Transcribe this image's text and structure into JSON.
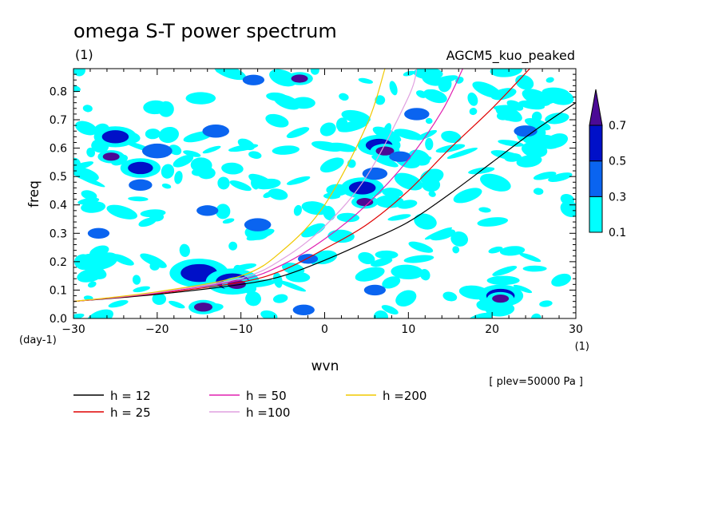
{
  "chart_data": {
    "type": "heatmap",
    "title": "omega S-T power spectrum",
    "subtitle": "(1)",
    "model_label": "AGCM5_kuo_peaked",
    "xlabel": "wvn",
    "x_unit": "(1)",
    "ylabel": "freq",
    "y_unit": "(day-1)",
    "xlim": [
      -30,
      30
    ],
    "ylim": [
      0,
      0.88
    ],
    "x_ticks": [
      "−30",
      "−20",
      "−10",
      "0",
      "10",
      "20",
      "30"
    ],
    "x_tick_values": [
      -30,
      -20,
      -10,
      0,
      10,
      20,
      30
    ],
    "y_ticks": [
      "0.0",
      "0.1",
      "0.2",
      "0.3",
      "0.4",
      "0.5",
      "0.6",
      "0.7",
      "0.8"
    ],
    "y_tick_values": [
      0,
      0.1,
      0.2,
      0.3,
      0.4,
      0.5,
      0.6,
      0.7,
      0.8
    ],
    "footnote": "[ plev=50000 Pa ]",
    "colorbar": {
      "levels": [
        "0.1",
        "0.3",
        "0.5",
        "0.7"
      ],
      "level_values": [
        0.1,
        0.3,
        0.5,
        0.7
      ],
      "colors": [
        "#00ffff",
        "#0a64f0",
        "#0010c8",
        "#4b0a96"
      ]
    },
    "series": [
      {
        "name": "h = 12",
        "label": "h = 12",
        "color": "#000000",
        "x": [
          -30,
          -20,
          -10,
          -5,
          0,
          5,
          10,
          15,
          20,
          25,
          30
        ],
        "y": [
          0.06,
          0.085,
          0.12,
          0.15,
          0.205,
          0.27,
          0.34,
          0.44,
          0.55,
          0.66,
          0.76
        ]
      },
      {
        "name": "h = 25",
        "label": "h = 25",
        "color": "#e00000",
        "x": [
          -30,
          -20,
          -10,
          -5,
          0,
          5,
          10,
          15,
          20,
          24.5
        ],
        "y": [
          0.06,
          0.088,
          0.128,
          0.17,
          0.245,
          0.33,
          0.45,
          0.6,
          0.74,
          0.88
        ]
      },
      {
        "name": "h = 50",
        "label": "h = 50",
        "color": "#e020b0",
        "x": [
          -30,
          -20,
          -10,
          -5,
          0,
          5,
          10,
          14,
          16.5
        ],
        "y": [
          0.06,
          0.09,
          0.136,
          0.19,
          0.28,
          0.4,
          0.56,
          0.73,
          0.88
        ]
      },
      {
        "name": "h =100",
        "label": "h =100",
        "color": "#e0a0e0",
        "x": [
          -30,
          -20,
          -10,
          -5,
          0,
          5,
          10,
          11
        ],
        "y": [
          0.06,
          0.092,
          0.142,
          0.21,
          0.325,
          0.5,
          0.78,
          0.88
        ]
      },
      {
        "name": "h =200",
        "label": "h =200",
        "color": "#f0c800",
        "x": [
          -30,
          -20,
          -10,
          -5,
          0,
          5,
          7.2
        ],
        "y": [
          0.06,
          0.094,
          0.15,
          0.24,
          0.4,
          0.68,
          0.88
        ]
      }
    ],
    "features": [
      {
        "x": -25,
        "y": 0.64,
        "r": 1.6,
        "level": 0.5
      },
      {
        "x": -25.5,
        "y": 0.57,
        "r": 1.0,
        "level": 0.7
      },
      {
        "x": -22,
        "y": 0.53,
        "r": 1.5,
        "level": 0.5
      },
      {
        "x": -20,
        "y": 0.59,
        "r": 1.8,
        "level": 0.3
      },
      {
        "x": -22,
        "y": 0.47,
        "r": 1.4,
        "level": 0.3
      },
      {
        "x": -13,
        "y": 0.66,
        "r": 1.6,
        "level": 0.3
      },
      {
        "x": -15,
        "y": 0.16,
        "r": 2.2,
        "level": 0.5
      },
      {
        "x": -11,
        "y": 0.13,
        "r": 2.0,
        "level": 0.5
      },
      {
        "x": -10.5,
        "y": 0.12,
        "r": 1.1,
        "level": 0.7
      },
      {
        "x": -14.5,
        "y": 0.04,
        "r": 1.1,
        "level": 0.7
      },
      {
        "x": -14,
        "y": 0.38,
        "r": 1.3,
        "level": 0.3
      },
      {
        "x": -8.5,
        "y": 0.84,
        "r": 1.3,
        "level": 0.3
      },
      {
        "x": -3,
        "y": 0.845,
        "r": 1.0,
        "level": 0.7
      },
      {
        "x": -8,
        "y": 0.33,
        "r": 1.6,
        "level": 0.3
      },
      {
        "x": -2,
        "y": 0.21,
        "r": 1.2,
        "level": 0.3
      },
      {
        "x": 4.5,
        "y": 0.46,
        "r": 1.6,
        "level": 0.5
      },
      {
        "x": 4.8,
        "y": 0.41,
        "r": 1.0,
        "level": 0.7
      },
      {
        "x": 6.5,
        "y": 0.61,
        "r": 1.6,
        "level": 0.5
      },
      {
        "x": 7.2,
        "y": 0.59,
        "r": 1.1,
        "level": 0.7
      },
      {
        "x": 6.0,
        "y": 0.51,
        "r": 1.5,
        "level": 0.3
      },
      {
        "x": 6.0,
        "y": 0.1,
        "r": 1.3,
        "level": 0.3
      },
      {
        "x": 11,
        "y": 0.72,
        "r": 1.5,
        "level": 0.3
      },
      {
        "x": 9,
        "y": 0.57,
        "r": 1.3,
        "level": 0.3
      },
      {
        "x": 21,
        "y": 0.08,
        "r": 1.7,
        "level": 0.5
      },
      {
        "x": 21,
        "y": 0.07,
        "r": 1.0,
        "level": 0.7
      },
      {
        "x": -27,
        "y": 0.3,
        "r": 1.3,
        "level": 0.3
      },
      {
        "x": -2.5,
        "y": 0.03,
        "r": 1.3,
        "level": 0.3
      },
      {
        "x": 24,
        "y": 0.66,
        "r": 1.4,
        "level": 0.3
      }
    ]
  }
}
